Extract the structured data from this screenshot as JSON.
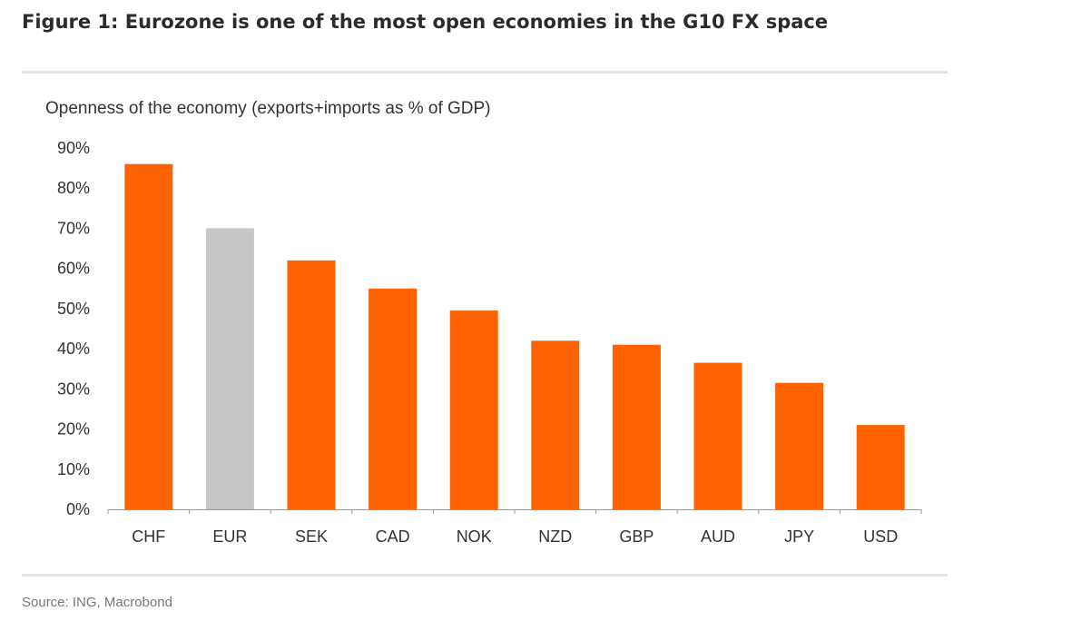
{
  "figure": {
    "title": "Figure 1: Eurozone is one of the most open economies in the G10 FX space",
    "source": "Source: ING, Macrobond"
  },
  "colors": {
    "highlight": "#ff6200",
    "eurozone": "#c6c6c6",
    "axis": "#999999",
    "rule": "#e3e3e3"
  },
  "chart_data": {
    "type": "bar",
    "title": "Openness of the economy (exports+imports as % of GDP)",
    "xlabel": "",
    "ylabel": "",
    "categories": [
      "CHF",
      "EUR",
      "SEK",
      "CAD",
      "NOK",
      "NZD",
      "GBP",
      "AUD",
      "JPY",
      "USD"
    ],
    "values": [
      86,
      70,
      62,
      55,
      49.5,
      42,
      41,
      36.5,
      31.5,
      21
    ],
    "bar_colors": [
      "#ff6200",
      "#c6c6c6",
      "#ff6200",
      "#ff6200",
      "#ff6200",
      "#ff6200",
      "#ff6200",
      "#ff6200",
      "#ff6200",
      "#ff6200"
    ],
    "ylim": [
      0,
      90
    ],
    "y_ticks": [
      0,
      10,
      20,
      30,
      40,
      50,
      60,
      70,
      80,
      90
    ],
    "y_tick_labels": [
      "0%",
      "10%",
      "20%",
      "30%",
      "40%",
      "50%",
      "60%",
      "70%",
      "80%",
      "90%"
    ],
    "grid": false,
    "legend": "none"
  }
}
